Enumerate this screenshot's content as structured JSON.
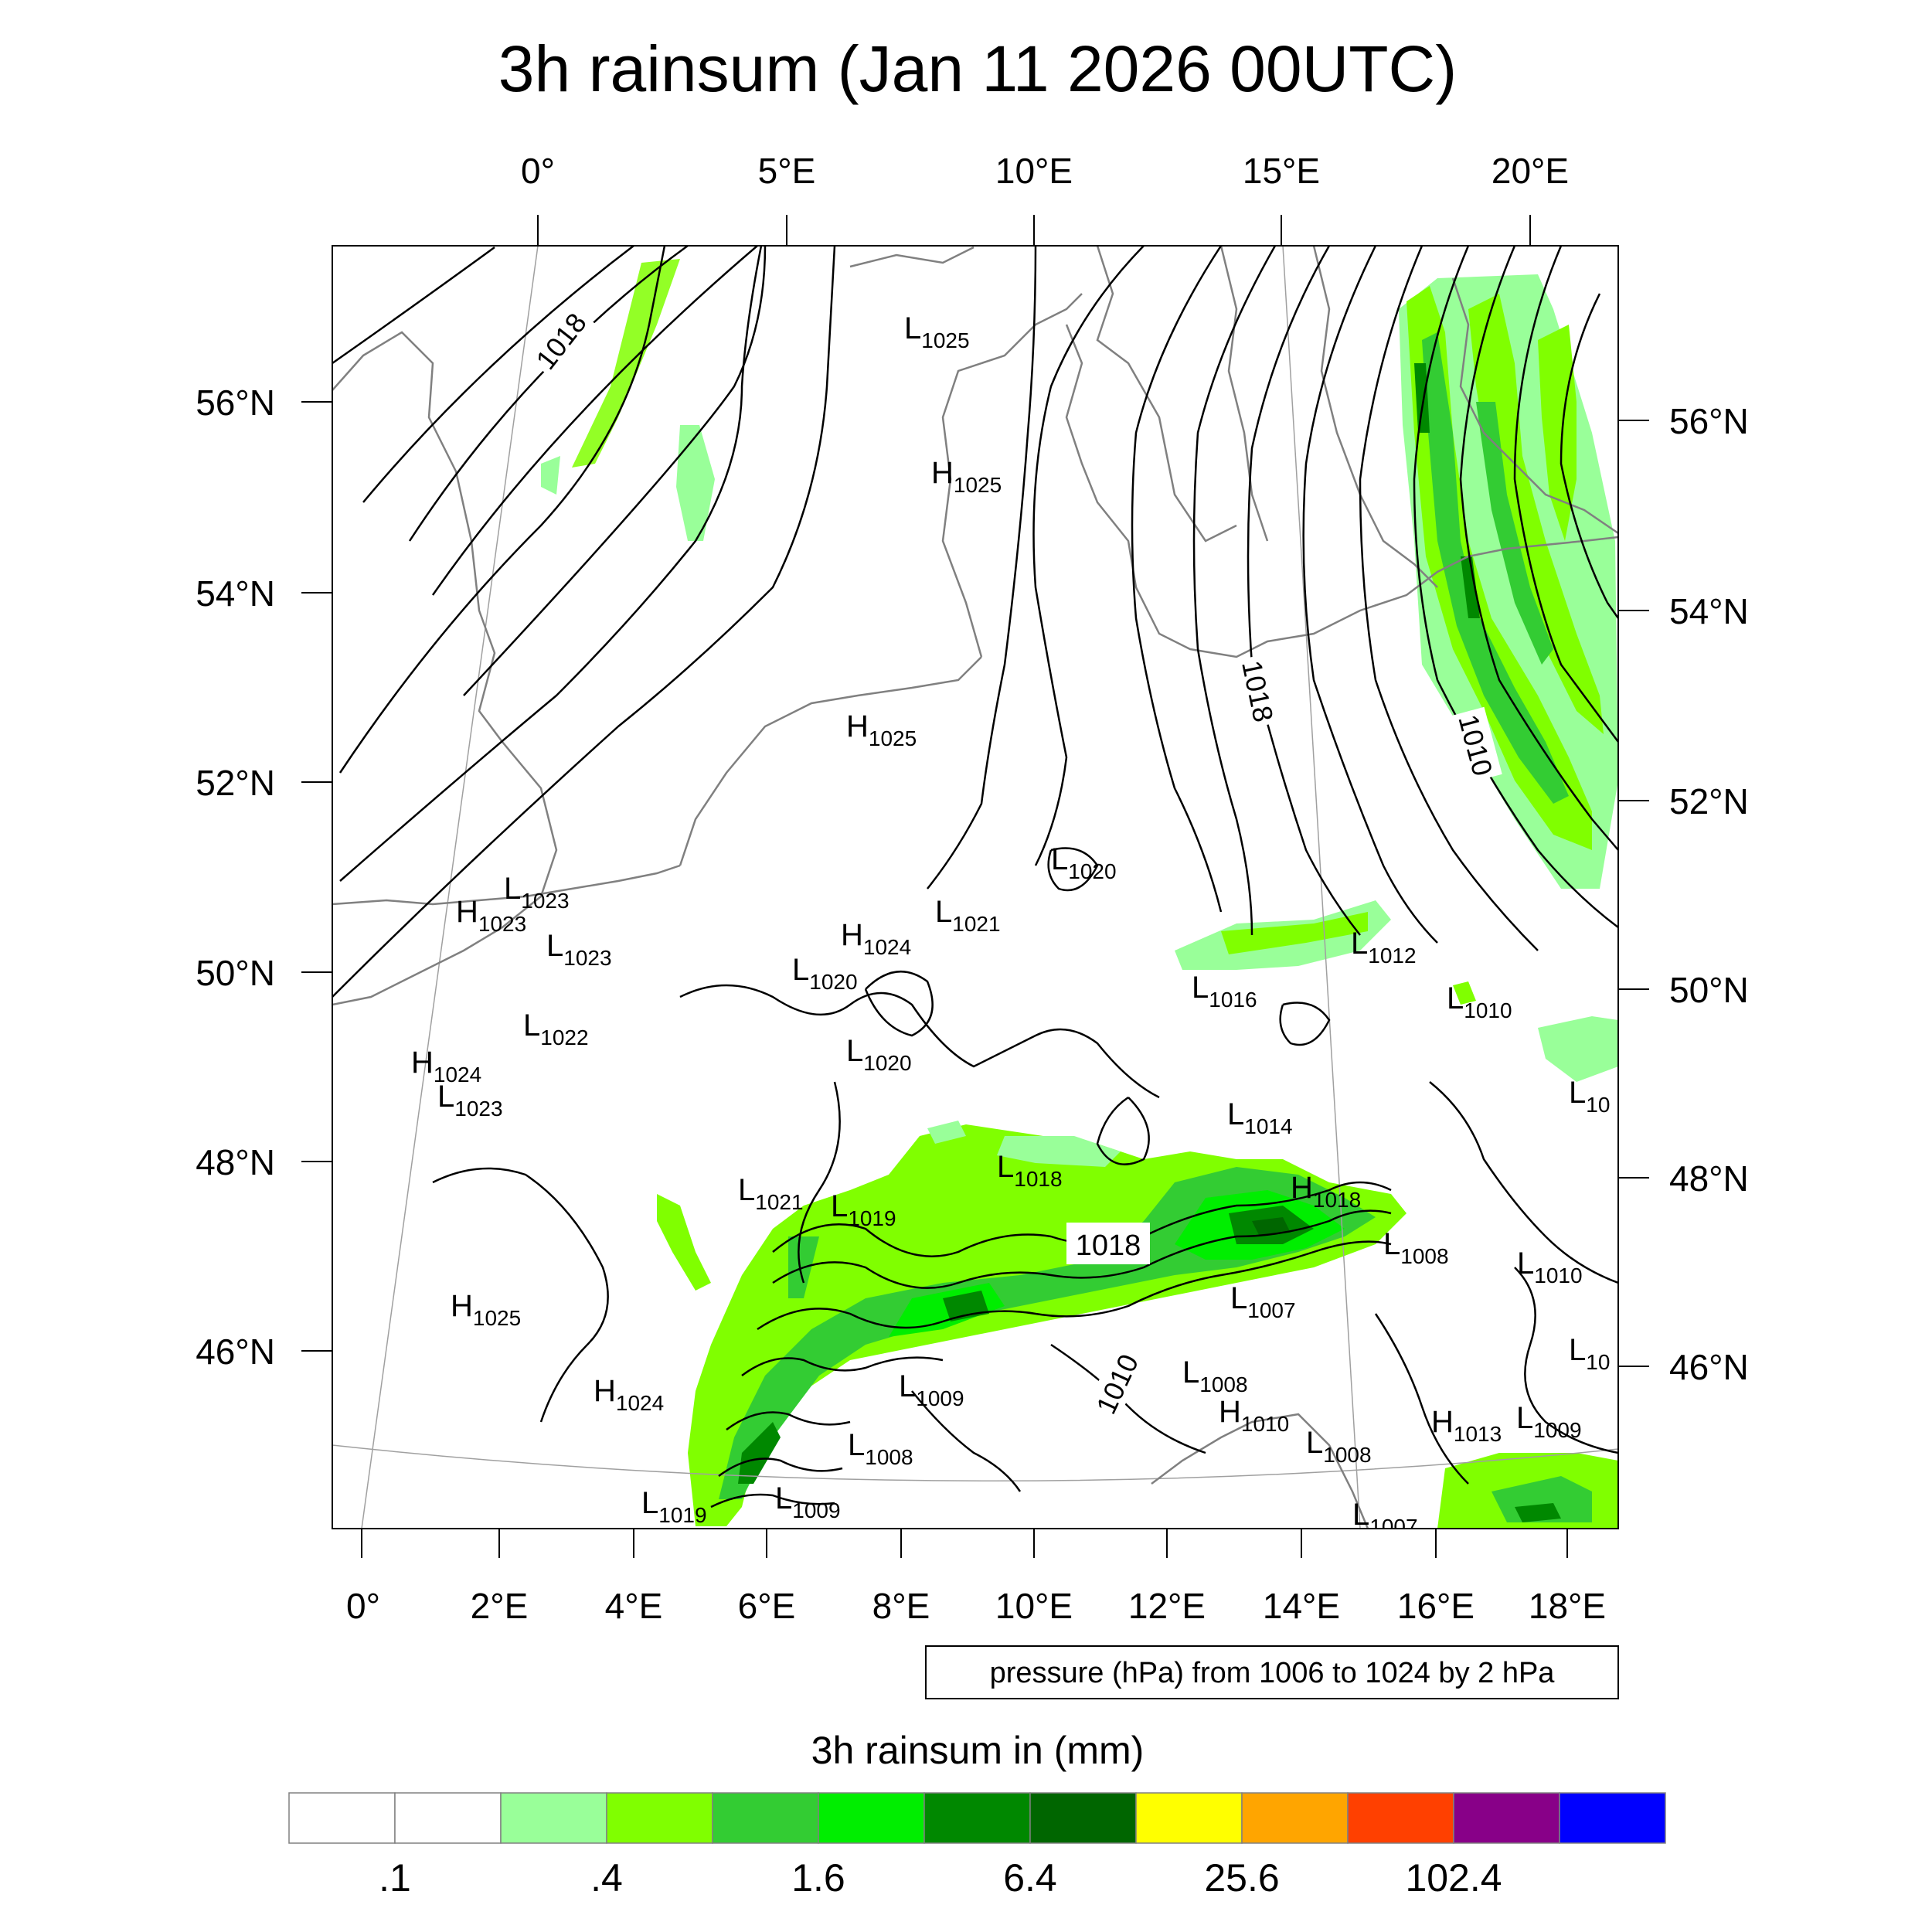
{
  "title": "3h rainsum (Jan 11 2026 00UTC)",
  "axes": {
    "top_lon": [
      "0°",
      "5°E",
      "10°E",
      "15°E",
      "20°E"
    ],
    "bottom_lon": [
      "0°",
      "2°E",
      "4°E",
      "6°E",
      "8°E",
      "10°E",
      "12°E",
      "14°E",
      "16°E",
      "18°E"
    ],
    "left_lat": [
      "56°N",
      "54°N",
      "52°N",
      "50°N",
      "48°N",
      "46°N"
    ],
    "right_lat": [
      "56°N",
      "54°N",
      "52°N",
      "50°N",
      "48°N",
      "46°N"
    ]
  },
  "contour_labels": [
    "1018",
    "1018",
    "1010",
    "1018",
    "1010"
  ],
  "pressure_centers": [
    {
      "type": "L",
      "value": "1025"
    },
    {
      "type": "H",
      "value": "1025"
    },
    {
      "type": "H",
      "value": "1025"
    },
    {
      "type": "L",
      "value": "1020"
    },
    {
      "type": "L",
      "value": "1023"
    },
    {
      "type": "H",
      "value": "1023"
    },
    {
      "type": "L",
      "value": "1023"
    },
    {
      "type": "H",
      "value": "1024"
    },
    {
      "type": "L",
      "value": "1021"
    },
    {
      "type": "L",
      "value": "1020"
    },
    {
      "type": "L",
      "value": "1022"
    },
    {
      "type": "L",
      "value": "1020"
    },
    {
      "type": "H",
      "value": "1024"
    },
    {
      "type": "L",
      "value": "1023"
    },
    {
      "type": "L",
      "value": "1016"
    },
    {
      "type": "L",
      "value": "1012"
    },
    {
      "type": "L",
      "value": "1010"
    },
    {
      "type": "L",
      "value": "10"
    },
    {
      "type": "L",
      "value": "1014"
    },
    {
      "type": "L",
      "value": "1018"
    },
    {
      "type": "H",
      "value": "1018"
    },
    {
      "type": "L",
      "value": "1021"
    },
    {
      "type": "L",
      "value": "1019"
    },
    {
      "type": "L",
      "value": "1008"
    },
    {
      "type": "L",
      "value": "1010"
    },
    {
      "type": "L",
      "value": "1007"
    },
    {
      "type": "H",
      "value": "1025"
    },
    {
      "type": "L",
      "value": "10"
    },
    {
      "type": "L",
      "value": "1008"
    },
    {
      "type": "H",
      "value": "1024"
    },
    {
      "type": "L",
      "value": "1009"
    },
    {
      "type": "H",
      "value": "1010"
    },
    {
      "type": "H",
      "value": "1013"
    },
    {
      "type": "L",
      "value": "1009"
    },
    {
      "type": "L",
      "value": "1008"
    },
    {
      "type": "L",
      "value": "1008"
    },
    {
      "type": "L",
      "value": "1019"
    },
    {
      "type": "L",
      "value": "1009"
    },
    {
      "type": "L",
      "value": "1007"
    }
  ],
  "pressure_note": "pressure (hPa) from 1006 to 1024 by 2 hPa",
  "colorbar": {
    "title": "3h rainsum in (mm)",
    "colors": [
      "#ffffff",
      "#ffffff",
      "#99ff99",
      "#80ff00",
      "#33cc33",
      "#00ee00",
      "#008800",
      "#006600",
      "#ffff00",
      "#ffa500",
      "#ff4000",
      "#880088",
      "#0000ff"
    ],
    "labels": [
      ".1",
      ".4",
      "1.6",
      "6.4",
      "25.6",
      "102.4"
    ]
  },
  "colors": {
    "coast": "#808080",
    "isobar": "#000000",
    "grid": "#a0a0a0"
  }
}
